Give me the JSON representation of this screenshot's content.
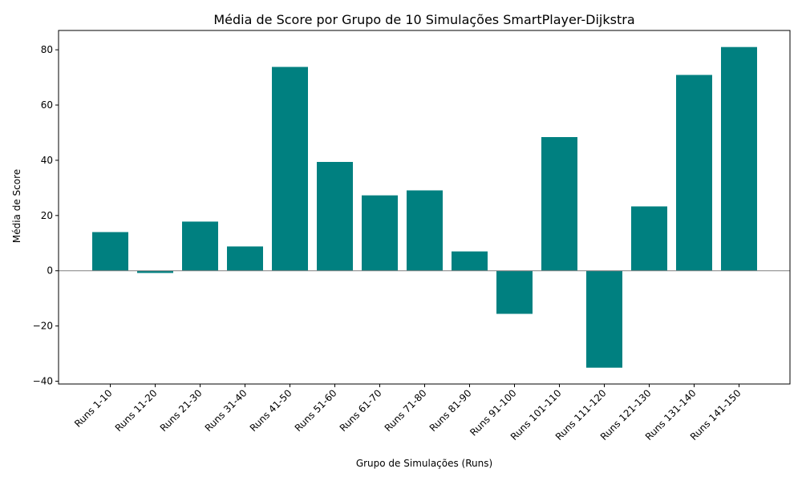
{
  "chart_data": {
    "type": "bar",
    "title": "Média de Score por Grupo de 10 Simulações SmartPlayer-Dijkstra",
    "xlabel": "Grupo de Simulações (Runs)",
    "ylabel": "Média de Score",
    "categories": [
      "Runs 1-10",
      "Runs 11-20",
      "Runs 21-30",
      "Runs 31-40",
      "Runs 41-50",
      "Runs 51-60",
      "Runs 61-70",
      "Runs 71-80",
      "Runs 81-90",
      "Runs 91-100",
      "Runs 101-110",
      "Runs 111-120",
      "Runs 121-130",
      "Runs 131-140",
      "Runs 141-150"
    ],
    "values": [
      14.0,
      -0.8,
      17.8,
      8.8,
      73.8,
      39.4,
      27.3,
      29.1,
      7.0,
      -15.6,
      48.4,
      -35.1,
      23.3,
      70.9,
      81.0
    ],
    "ylim": [
      -41,
      87
    ],
    "yticks": [
      -40,
      -20,
      0,
      20,
      40,
      60,
      80
    ],
    "ytick_labels": [
      "−40",
      "−20",
      "0",
      "20",
      "40",
      "60",
      "80"
    ],
    "bar_color": "#008080",
    "zero_line_color": "#808080",
    "grid": false
  }
}
